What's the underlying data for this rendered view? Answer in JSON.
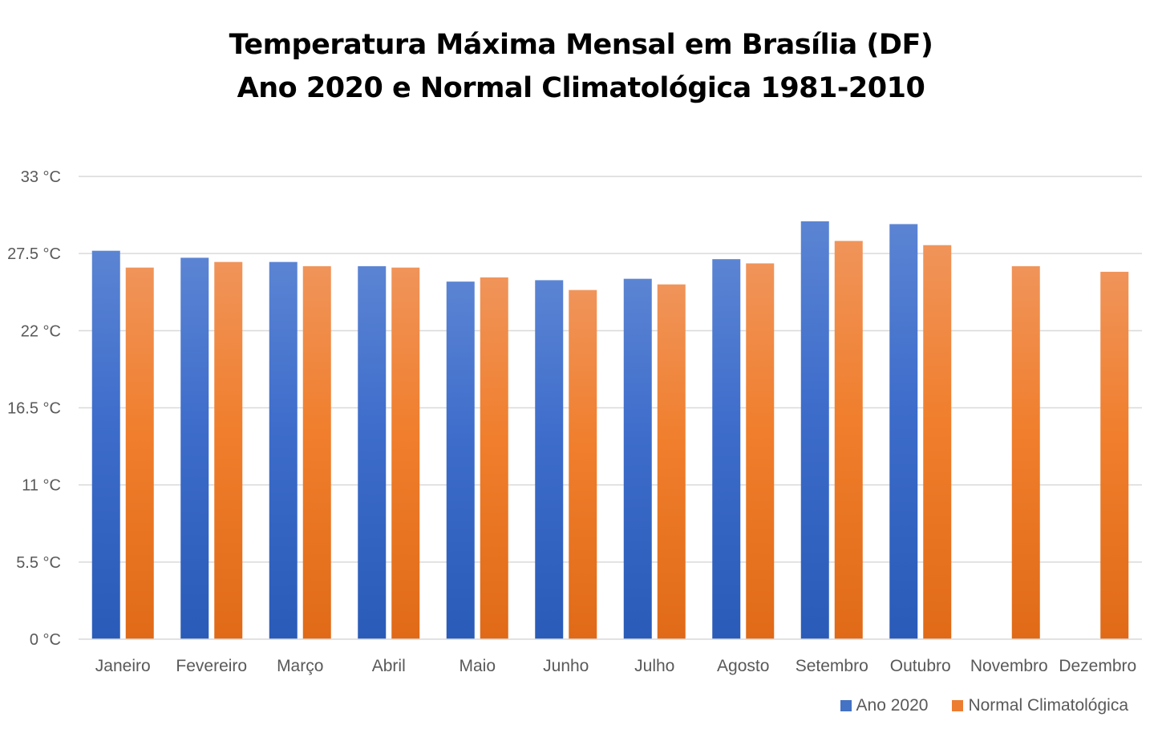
{
  "chart_data": {
    "type": "bar",
    "title": "Temperatura Máxima Mensal em Brasília (DF)",
    "subtitle": "Ano 2020 e Normal Climatológica 1981-2010",
    "categories": [
      "Janeiro",
      "Fevereiro",
      "Março",
      "Abril",
      "Maio",
      "Junho",
      "Julho",
      "Agosto",
      "Setembro",
      "Outubro",
      "Novembro",
      "Dezembro"
    ],
    "series": [
      {
        "name": "Ano 2020",
        "color": "#4472C4",
        "values": [
          27.7,
          27.2,
          26.9,
          26.6,
          25.5,
          25.6,
          25.7,
          27.1,
          29.8,
          29.6,
          null,
          null
        ]
      },
      {
        "name": "Normal Climatológica",
        "color": "#ED7D31",
        "values": [
          26.5,
          26.9,
          26.6,
          26.5,
          25.8,
          24.9,
          25.3,
          26.8,
          28.4,
          28.1,
          26.6,
          26.2
        ]
      }
    ],
    "yticks": [
      "0 °C",
      "5.5 °C",
      "11 °C",
      "16.5 °C",
      "22 °C",
      "27.5 °C",
      "33 °C"
    ],
    "ylim": [
      0,
      33
    ],
    "ytick_step": 5.5,
    "grid": true,
    "legend_position": "bottom-right"
  }
}
